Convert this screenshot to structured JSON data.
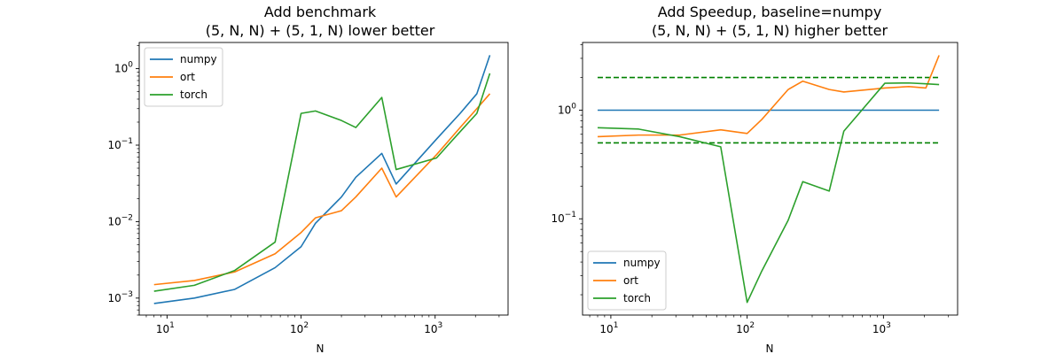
{
  "chart_data": [
    {
      "type": "line",
      "title": "Add benchmark",
      "subtitle": "(5, N, N) + (5, 1, N) lower better",
      "xlabel": "N",
      "ylabel": "",
      "xscale": "log",
      "yscale": "log",
      "xlim": [
        6.2,
        3500
      ],
      "ylim": [
        0.0006,
        2.2
      ],
      "xticks": [
        {
          "value": 10,
          "base": "10",
          "exp": "1"
        },
        {
          "value": 100,
          "base": "10",
          "exp": "2"
        },
        {
          "value": 1000,
          "base": "10",
          "exp": "3"
        }
      ],
      "yticks": [
        {
          "value": 0.001,
          "base": "10",
          "exp": "−3"
        },
        {
          "value": 0.01,
          "base": "10",
          "exp": "−2"
        },
        {
          "value": 0.1,
          "base": "10",
          "exp": "−1"
        },
        {
          "value": 1,
          "base": "10",
          "exp": "0"
        }
      ],
      "legend_position": "upper-left",
      "x": [
        8,
        16,
        32,
        64,
        100,
        128,
        200,
        256,
        400,
        512,
        1024,
        1536,
        2048,
        2560
      ],
      "series": [
        {
          "name": "numpy",
          "color": "#1f77b4",
          "values": [
            0.00085,
            0.001,
            0.0013,
            0.0025,
            0.0047,
            0.0095,
            0.021,
            0.038,
            0.078,
            0.031,
            0.12,
            0.26,
            0.47,
            1.5
          ]
        },
        {
          "name": "ort",
          "color": "#ff7f0e",
          "values": [
            0.0015,
            0.0017,
            0.0022,
            0.0038,
            0.0072,
            0.0112,
            0.0139,
            0.021,
            0.05,
            0.021,
            0.075,
            0.17,
            0.3,
            0.47
          ]
        },
        {
          "name": "torch",
          "color": "#2ca02c",
          "values": [
            0.00123,
            0.00147,
            0.0023,
            0.0054,
            0.26,
            0.28,
            0.21,
            0.17,
            0.42,
            0.048,
            0.068,
            0.15,
            0.26,
            0.87
          ]
        }
      ],
      "reference_lines": []
    },
    {
      "type": "line",
      "title": "Add Speedup, baseline=numpy",
      "subtitle": "(5, N, N) + (5, 1, N) higher better",
      "xlabel": "N",
      "ylabel": "",
      "xscale": "log",
      "yscale": "log",
      "xlim": [
        6.2,
        3500
      ],
      "ylim": [
        0.013,
        4.2
      ],
      "xticks": [
        {
          "value": 10,
          "base": "10",
          "exp": "1"
        },
        {
          "value": 100,
          "base": "10",
          "exp": "2"
        },
        {
          "value": 1000,
          "base": "10",
          "exp": "3"
        }
      ],
      "yticks": [
        {
          "value": 0.1,
          "base": "10",
          "exp": "−1"
        },
        {
          "value": 1,
          "base": "10",
          "exp": "0"
        }
      ],
      "legend_position": "lower-left",
      "x": [
        8,
        16,
        32,
        64,
        100,
        128,
        200,
        256,
        400,
        512,
        1024,
        1536,
        2048,
        2560
      ],
      "series": [
        {
          "name": "numpy",
          "color": "#1f77b4",
          "values": [
            1,
            1,
            1,
            1,
            1,
            1,
            1,
            1,
            1,
            1,
            1,
            1,
            1,
            1
          ]
        },
        {
          "name": "ort",
          "color": "#ff7f0e",
          "values": [
            0.57,
            0.59,
            0.59,
            0.66,
            0.61,
            0.82,
            1.55,
            1.85,
            1.55,
            1.47,
            1.6,
            1.65,
            1.6,
            3.2
          ]
        },
        {
          "name": "torch",
          "color": "#2ca02c",
          "values": [
            0.69,
            0.67,
            0.57,
            0.46,
            0.017,
            0.033,
            0.097,
            0.22,
            0.18,
            0.64,
            1.77,
            1.78,
            1.75,
            1.72
          ]
        }
      ],
      "reference_lines": [
        {
          "value": 2,
          "color": "#008000",
          "style": "dashed",
          "x_from": 8,
          "x_to": 2560
        },
        {
          "value": 0.5,
          "color": "#008000",
          "style": "dashed",
          "x_from": 8,
          "x_to": 2560
        }
      ]
    }
  ]
}
